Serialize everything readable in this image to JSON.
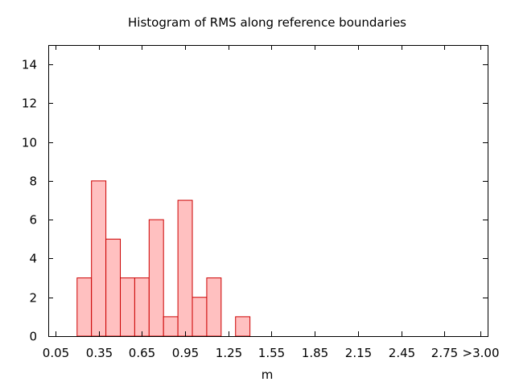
{
  "chart_data": {
    "type": "bar",
    "title": "Histogram of RMS along reference boundaries",
    "xlabel": "m",
    "ylabel": "",
    "bin_width": 0.1,
    "bins": [
      {
        "center": 0.25,
        "count": 3
      },
      {
        "center": 0.35,
        "count": 8
      },
      {
        "center": 0.45,
        "count": 5
      },
      {
        "center": 0.55,
        "count": 3
      },
      {
        "center": 0.65,
        "count": 3
      },
      {
        "center": 0.75,
        "count": 6
      },
      {
        "center": 0.85,
        "count": 1
      },
      {
        "center": 0.95,
        "count": 7
      },
      {
        "center": 1.05,
        "count": 2
      },
      {
        "center": 1.15,
        "count": 3
      },
      {
        "center": 1.25,
        "count": 0
      },
      {
        "center": 1.35,
        "count": 1
      }
    ],
    "xlim": [
      0.0,
      3.05
    ],
    "ylim": [
      0,
      15
    ],
    "x_ticks": [
      {
        "value": 0.05,
        "label": "0.05"
      },
      {
        "value": 0.35,
        "label": "0.35"
      },
      {
        "value": 0.65,
        "label": "0.65"
      },
      {
        "value": 0.95,
        "label": "0.95"
      },
      {
        "value": 1.25,
        "label": "1.25"
      },
      {
        "value": 1.55,
        "label": "1.55"
      },
      {
        "value": 1.85,
        "label": "1.85"
      },
      {
        "value": 2.15,
        "label": "2.15"
      },
      {
        "value": 2.45,
        "label": "2.45"
      },
      {
        "value": 2.75,
        "label": "2.75"
      },
      {
        "value": 3.0,
        "label": ">3.00"
      }
    ],
    "y_ticks": [
      {
        "value": 0,
        "label": "0"
      },
      {
        "value": 2,
        "label": "2"
      },
      {
        "value": 4,
        "label": "4"
      },
      {
        "value": 6,
        "label": "6"
      },
      {
        "value": 8,
        "label": "8"
      },
      {
        "value": 10,
        "label": "10"
      },
      {
        "value": 12,
        "label": "12"
      },
      {
        "value": 14,
        "label": "14"
      }
    ],
    "grid": false,
    "legend": "none",
    "colors": {
      "bar_fill": "#ffc0c0",
      "bar_edge": "#cc0000",
      "axes": "#000000"
    }
  }
}
